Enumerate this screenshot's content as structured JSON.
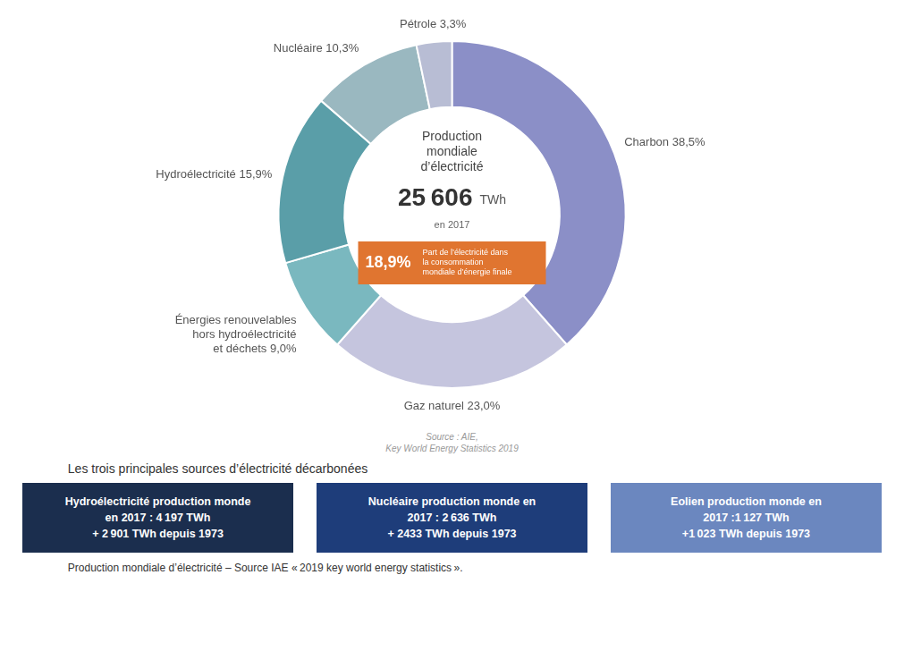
{
  "chart_data": {
    "type": "doughnut",
    "values": [
      38.5,
      23.0,
      9.0,
      15.9,
      10.3,
      3.3
    ],
    "colors": [
      "#8b8fc7",
      "#c5c5de",
      "#7ab8bf",
      "#5a9ea8",
      "#9ab8c0",
      "#b8bdd4"
    ],
    "data_labels": true,
    "value_labels": [
      "Charbon 38,5%",
      "Gaz naturel 23,0%",
      "Énergies renouvelables\nhors hydroélectricité\net déchets 9,0%",
      "Hydroélectricité 15,9%",
      "Nucléaire 10,3%",
      "Pétrole 3,3%"
    ],
    "annotations": {
      "center": [
        "Production\nmondiale\nd’électricité",
        "25 606",
        "TWh",
        "en 2017"
      ],
      "highlight": {
        "color": "#E07530",
        "texts": [
          "18,9%",
          "Part de l’électricité dans\nla consommation\nmondiale d’énergie finale"
        ]
      },
      "source": "Source : AIE,\nKey World Energy Statistics 2019",
      "section_title": "Les trois principales sources d’électricité décarbonées",
      "boxes": [
        {
          "color": "#1b2e4e",
          "lines": [
            "Hydroélectricité production monde",
            "en 2017 :  4 197 TWh",
            "+ 2 901 TWh depuis 1973"
          ]
        },
        {
          "color": "#1e3d7a",
          "lines": [
            "Nucléaire production monde en",
            "2017 : 2 636 TWh",
            "+ 2433 TWh depuis 1973"
          ]
        },
        {
          "color": "#6b87bf",
          "lines": [
            "Eolien production monde en",
            "2017 :1 127 TWh",
            "+1 023 TWh depuis 1973"
          ]
        }
      ],
      "footer": "Production mondiale d’électricité – Source IAE « 2019 key world energy statistics »."
    }
  }
}
